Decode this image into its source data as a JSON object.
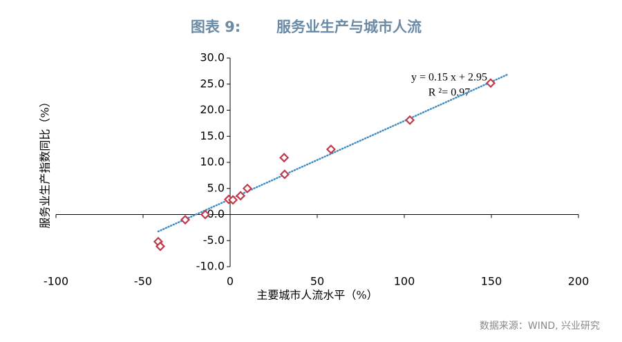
{
  "chart_data": {
    "type": "scatter",
    "title": "图表 9:",
    "subtitle": "服务业生产与城市人流",
    "x_label": "主要城市人流水平（%）",
    "y_label": "服务业生产指数同比（%）",
    "source": "数据来源：WIND, 兴业研究",
    "x": [
      -41.3,
      -40.1,
      -25.8,
      -14.3,
      -0.8,
      1.6,
      6.0,
      9.9,
      31.0,
      31.3,
      57.9,
      103.2,
      149.6
    ],
    "values": [
      -5.2,
      -6.1,
      -1.0,
      0.0,
      2.9,
      2.8,
      3.6,
      5.0,
      10.9,
      7.7,
      12.5,
      18.1,
      25.2
    ],
    "color": "#c0394a",
    "xlim": [
      -100,
      200
    ],
    "xticks": [
      -100,
      -50,
      0,
      50,
      100,
      150,
      200
    ],
    "ylim": [
      -10,
      30
    ],
    "yticks": [
      {
        "value": -10,
        "label": "-10.0"
      },
      {
        "value": -5,
        "label": "-5.0"
      },
      {
        "value": 0,
        "label": "0.0"
      },
      {
        "value": 5,
        "label": "5.0"
      },
      {
        "value": 10,
        "label": "10.0"
      },
      {
        "value": 15,
        "label": "15.0"
      },
      {
        "value": 20,
        "label": "20.0"
      },
      {
        "value": 25,
        "label": "25.0"
      },
      {
        "value": 30,
        "label": "30.0"
      }
    ],
    "trendline": {
      "slope": 0.15,
      "intercept": 2.95,
      "color": "#3d8cc4",
      "equation": "y = 0.15 x + 2.95",
      "r2": "R ²= 0.97"
    }
  }
}
